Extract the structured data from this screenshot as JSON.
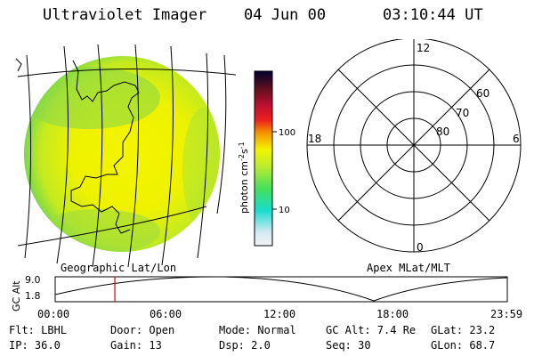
{
  "header": {
    "instrument": "Ultraviolet Imager",
    "date": "04 Jun 00",
    "time": "03:10:44 UT"
  },
  "colorbar": {
    "unit_label": "photon cm",
    "unit_exp1": "-2",
    "unit_mid": "s",
    "unit_exp2": "-1",
    "tick_high": "100",
    "tick_low": "10"
  },
  "polar_plot": {
    "mlt_top": "12",
    "mlt_left": "18",
    "mlt_right": "6",
    "mlt_bottom": "0",
    "lat_60": "60",
    "lat_70": "70",
    "lat_80": "80",
    "caption": "Apex MLat/MLT"
  },
  "earth_image": {
    "caption": "Geographic Lat/Lon"
  },
  "timeline": {
    "ylabel": "GC Alt",
    "y_max": "9.0",
    "y_min": "1.8",
    "ticks": [
      "00:00",
      "06:00",
      "12:00",
      "18:00",
      "23:59"
    ],
    "current_fraction": 0.132
  },
  "footer": {
    "flt": "Flt: LBHL",
    "ip": "IP: 36.0",
    "door": "Door: Open",
    "gain": "Gain: 13",
    "mode": "Mode: Normal",
    "dsp": "Dsp:     2.0",
    "gcalt": "GC Alt: 7.4 Re",
    "seq": "Seq: 30",
    "glat": "GLat:   23.2",
    "glon": "GLon:   68.7"
  }
}
